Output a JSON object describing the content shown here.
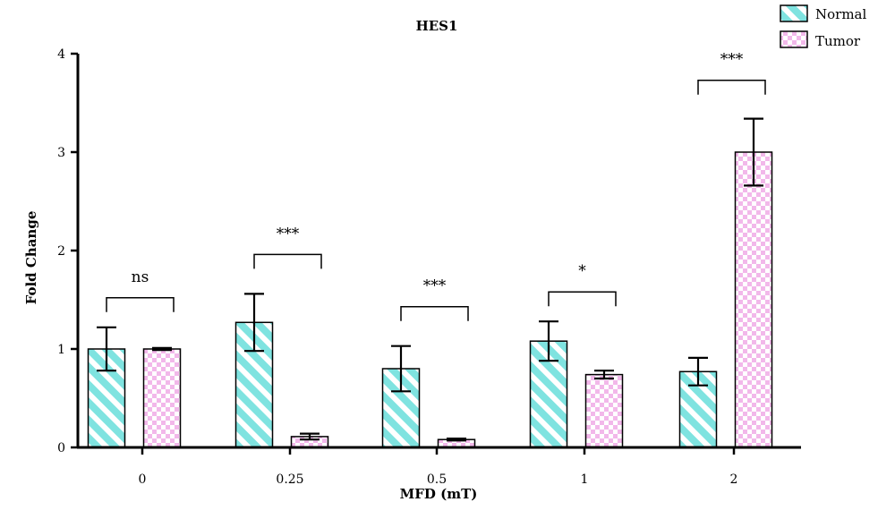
{
  "chart_data": {
    "type": "bar",
    "title": "HES1",
    "xlabel": "MFD (mT)",
    "ylabel": "Fold Change",
    "categories": [
      "0",
      "0.25",
      "0.5",
      "1",
      "2"
    ],
    "ylim": [
      0,
      4
    ],
    "yticks": [
      "0",
      "1",
      "2",
      "3",
      "4"
    ],
    "grid": false,
    "legend_position": "top-right",
    "series": [
      {
        "name": "Normal",
        "values": [
          1.0,
          1.27,
          0.8,
          1.08,
          0.77
        ],
        "errors": [
          0.22,
          0.29,
          0.23,
          0.2,
          0.14
        ],
        "color": "#7fe3e0",
        "pattern": "diagonal-stripes"
      },
      {
        "name": "Tumor",
        "values": [
          1.0,
          0.11,
          0.08,
          0.74,
          3.0
        ],
        "errors": [
          0.01,
          0.03,
          0.01,
          0.04,
          0.34
        ],
        "color": "#f2b8ea",
        "pattern": "checkerboard"
      }
    ],
    "significance": [
      "ns",
      "***",
      "***",
      "*",
      "***"
    ],
    "bracket_levels": [
      1.52,
      1.96,
      1.43,
      1.58,
      3.73
    ]
  }
}
